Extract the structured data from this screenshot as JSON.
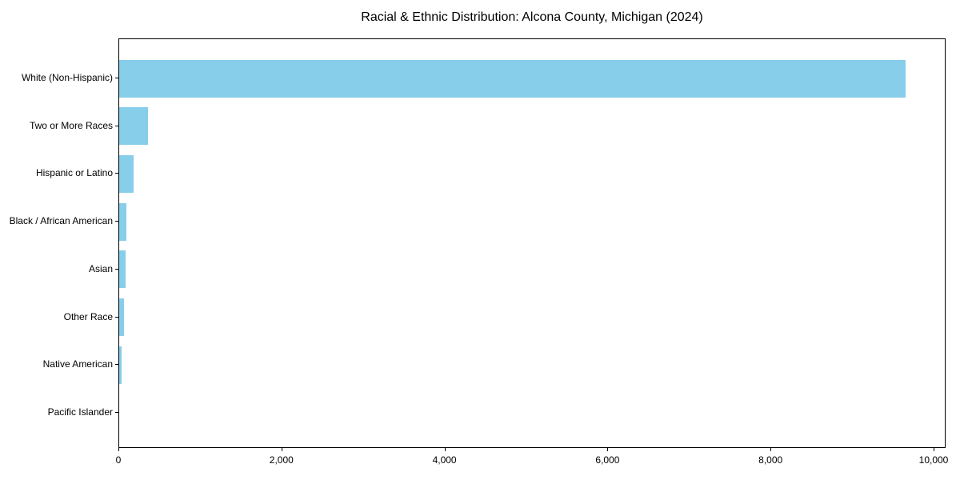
{
  "title": "Racial & Ethnic Distribution: Alcona County, Michigan (2024)",
  "colors": {
    "bar": "#87CEEB",
    "axis": "#000000",
    "background": "#FFFFFF",
    "text": "#000000"
  },
  "chart_data": {
    "type": "bar",
    "orientation": "horizontal",
    "title": "Racial & Ethnic Distribution: Alcona County, Michigan (2024)",
    "categories": [
      "White (Non-Hispanic)",
      "Two or More Races",
      "Hispanic or Latino",
      "Black / African American",
      "Asian",
      "Other Race",
      "Native American",
      "Pacific Islander"
    ],
    "values": [
      9650,
      350,
      175,
      85,
      75,
      60,
      25,
      0
    ],
    "xlabel": "",
    "ylabel": "",
    "xlim": [
      0,
      10145
    ],
    "x_ticks": [
      0,
      2000,
      4000,
      6000,
      8000,
      10000
    ],
    "x_tick_labels": [
      "0",
      "2,000",
      "4,000",
      "6,000",
      "8,000",
      "10,000"
    ],
    "grid": false,
    "legend": null,
    "bar_color": "#87CEEB"
  }
}
